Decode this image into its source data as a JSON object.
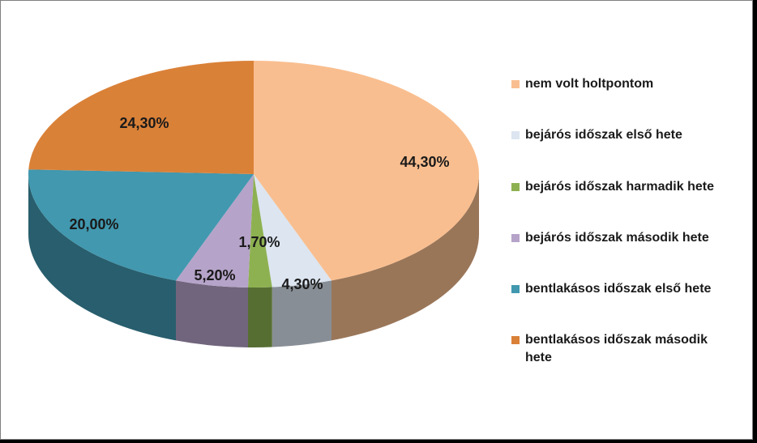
{
  "chart_data": {
    "type": "pie",
    "title": "",
    "slices": [
      {
        "label": "nem volt holtpontom",
        "value": 44.3,
        "display": "44,30%",
        "color": "#F9BE8F"
      },
      {
        "label": "bejárós időszak első hete",
        "value": 4.3,
        "display": "4,30%",
        "color": "#DCE5F0"
      },
      {
        "label": "bejárós időszak harmadik hete",
        "value": 1.7,
        "display": "1,70%",
        "color": "#8DB151"
      },
      {
        "label": "bejárós időszak második hete",
        "value": 5.2,
        "display": "5,20%",
        "color": "#B6A3C9"
      },
      {
        "label": "bentlakásos időszak első hete",
        "value": 20.0,
        "display": "20,00%",
        "color": "#4198AF"
      },
      {
        "label": "bentlakásos időszak második hete",
        "value": 24.3,
        "display": "24,30%",
        "color": "#DA8138"
      }
    ],
    "start_angle_deg": 0,
    "direction": "clockwise",
    "style": "3d",
    "legend_position": "right"
  }
}
